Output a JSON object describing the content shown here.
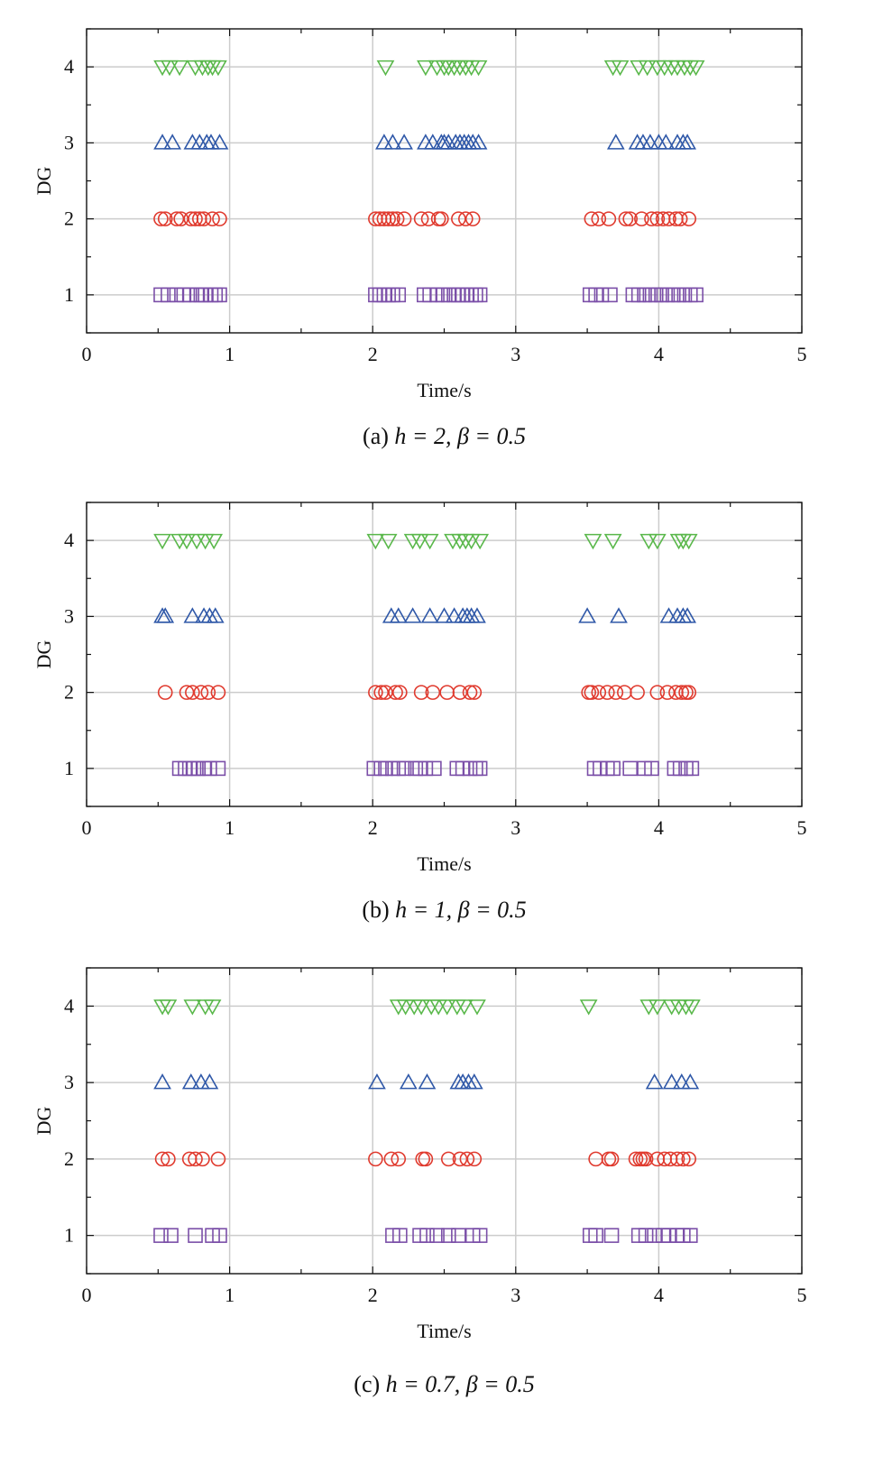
{
  "chart_data": [
    {
      "type": "scatter",
      "caption": {
        "prefix": "(a)",
        "text": "h = 2, β = 0.5"
      },
      "xlabel": "Time/s",
      "ylabel": "DG",
      "xlim": [
        0,
        5
      ],
      "ylim": [
        0.5,
        4.5
      ],
      "xticks": [
        0,
        1,
        2,
        3,
        4,
        5
      ],
      "yticks": [
        1,
        2,
        3,
        4
      ],
      "grid": true,
      "series": [
        {
          "y": 1,
          "marker": "square",
          "color": "#7b4fa8",
          "x": [
            0.52,
            0.57,
            0.63,
            0.68,
            0.72,
            0.77,
            0.8,
            0.83,
            0.87,
            0.9,
            0.93,
            2.02,
            2.05,
            2.08,
            2.11,
            2.14,
            2.18,
            2.36,
            2.4,
            2.45,
            2.49,
            2.53,
            2.57,
            2.6,
            2.63,
            2.66,
            2.69,
            2.72,
            2.75,
            3.52,
            3.56,
            3.6,
            3.66,
            3.82,
            3.86,
            3.9,
            3.94,
            3.98,
            4.02,
            4.06,
            4.1,
            4.14,
            4.18,
            4.22,
            4.26
          ]
        },
        {
          "y": 2,
          "marker": "circle",
          "color": "#e03a2e",
          "x": [
            0.52,
            0.55,
            0.63,
            0.66,
            0.73,
            0.76,
            0.79,
            0.82,
            0.88,
            0.93,
            2.02,
            2.05,
            2.08,
            2.11,
            2.14,
            2.17,
            2.22,
            2.34,
            2.39,
            2.46,
            2.48,
            2.6,
            2.65,
            2.7,
            3.53,
            3.58,
            3.65,
            3.77,
            3.8,
            3.88,
            3.95,
            3.99,
            4.03,
            4.07,
            4.12,
            4.15,
            4.21
          ]
        },
        {
          "y": 3,
          "marker": "triangle-up",
          "color": "#2f58a8",
          "x": [
            0.53,
            0.6,
            0.74,
            0.79,
            0.84,
            0.87,
            0.93,
            2.08,
            2.14,
            2.22,
            2.37,
            2.42,
            2.48,
            2.5,
            2.53,
            2.58,
            2.61,
            2.64,
            2.67,
            2.7,
            2.74,
            3.7,
            3.85,
            3.89,
            3.94,
            4.0,
            4.05,
            4.13,
            4.17,
            4.2
          ]
        },
        {
          "y": 4,
          "marker": "triangle-down",
          "color": "#5ab84b",
          "x": [
            0.53,
            0.58,
            0.65,
            0.76,
            0.81,
            0.85,
            0.88,
            0.92,
            2.09,
            2.37,
            2.45,
            2.5,
            2.53,
            2.57,
            2.61,
            2.65,
            2.69,
            2.74,
            3.68,
            3.73,
            3.86,
            3.92,
            3.99,
            4.04,
            4.09,
            4.13,
            4.18,
            4.22,
            4.26
          ]
        }
      ]
    },
    {
      "type": "scatter",
      "caption": {
        "prefix": "(b)",
        "text": "h = 1, β = 0.5"
      },
      "xlabel": "Time/s",
      "ylabel": "DG",
      "xlim": [
        0,
        5
      ],
      "ylim": [
        0.5,
        4.5
      ],
      "xticks": [
        0,
        1,
        2,
        3,
        4,
        5
      ],
      "yticks": [
        1,
        2,
        3,
        4
      ],
      "grid": true,
      "series": [
        {
          "y": 1,
          "marker": "square",
          "color": "#7b4fa8",
          "x": [
            0.65,
            0.69,
            0.72,
            0.75,
            0.78,
            0.82,
            0.86,
            0.92,
            2.01,
            2.06,
            2.09,
            2.14,
            2.18,
            2.22,
            2.3,
            2.33,
            2.37,
            2.43,
            2.59,
            2.63,
            2.68,
            2.72,
            2.75,
            3.55,
            3.59,
            3.64,
            3.68,
            3.8,
            3.9,
            3.95,
            4.11,
            4.15,
            4.19,
            4.23
          ]
        },
        {
          "y": 2,
          "marker": "circle",
          "color": "#e03a2e",
          "x": [
            0.55,
            0.7,
            0.74,
            0.8,
            0.85,
            0.92,
            2.02,
            2.06,
            2.09,
            2.16,
            2.19,
            2.34,
            2.42,
            2.52,
            2.61,
            2.68,
            2.71,
            3.51,
            3.53,
            3.58,
            3.64,
            3.7,
            3.76,
            3.85,
            3.99,
            4.06,
            4.12,
            4.16,
            4.19,
            4.21
          ]
        },
        {
          "y": 3,
          "marker": "triangle-up",
          "color": "#2f58a8",
          "x": [
            0.53,
            0.55,
            0.74,
            0.82,
            0.86,
            0.9,
            2.13,
            2.18,
            2.28,
            2.4,
            2.5,
            2.57,
            2.63,
            2.66,
            2.69,
            2.73,
            3.5,
            3.72,
            4.07,
            4.13,
            4.17,
            4.2
          ]
        },
        {
          "y": 4,
          "marker": "triangle-down",
          "color": "#5ab84b",
          "x": [
            0.53,
            0.65,
            0.7,
            0.77,
            0.83,
            0.89,
            2.02,
            2.11,
            2.28,
            2.33,
            2.4,
            2.56,
            2.61,
            2.65,
            2.69,
            2.75,
            3.54,
            3.68,
            3.93,
            3.99,
            4.14,
            4.17,
            4.21
          ]
        }
      ]
    },
    {
      "type": "scatter",
      "caption": {
        "prefix": "(c)",
        "text": "h = 0.7, β = 0.5"
      },
      "xlabel": "Time/s",
      "ylabel": "DG",
      "xlim": [
        0,
        5
      ],
      "ylim": [
        0.5,
        4.5
      ],
      "xticks": [
        0,
        1,
        2,
        3,
        4,
        5
      ],
      "yticks": [
        1,
        2,
        3,
        4
      ],
      "grid": true,
      "series": [
        {
          "y": 1,
          "marker": "square",
          "color": "#7b4fa8",
          "x": [
            0.52,
            0.59,
            0.76,
            0.88,
            0.93,
            2.14,
            2.19,
            2.33,
            2.38,
            2.45,
            2.53,
            2.6,
            2.7,
            2.75,
            3.52,
            3.56,
            3.67,
            3.86,
            3.91,
            3.97,
            4.03,
            4.07,
            4.13,
            4.17,
            4.22
          ]
        },
        {
          "y": 2,
          "marker": "circle",
          "color": "#e03a2e",
          "x": [
            0.53,
            0.57,
            0.72,
            0.76,
            0.81,
            0.92,
            2.02,
            2.13,
            2.18,
            2.35,
            2.37,
            2.53,
            2.61,
            2.66,
            2.71,
            3.56,
            3.65,
            3.67,
            3.84,
            3.87,
            3.89,
            3.91,
            3.99,
            4.04,
            4.08,
            4.13,
            4.17,
            4.21
          ]
        },
        {
          "y": 3,
          "marker": "triangle-up",
          "color": "#2f58a8",
          "x": [
            0.53,
            0.73,
            0.8,
            0.86,
            2.03,
            2.25,
            2.38,
            2.6,
            2.63,
            2.67,
            2.71,
            3.97,
            4.09,
            4.16,
            4.22
          ]
        },
        {
          "y": 4,
          "marker": "triangle-down",
          "color": "#5ab84b",
          "x": [
            0.53,
            0.57,
            0.74,
            0.83,
            0.88,
            2.18,
            2.23,
            2.29,
            2.34,
            2.41,
            2.46,
            2.52,
            2.59,
            2.64,
            2.73,
            3.51,
            3.93,
            3.99,
            4.09,
            4.14,
            4.19,
            4.23
          ]
        }
      ]
    }
  ]
}
